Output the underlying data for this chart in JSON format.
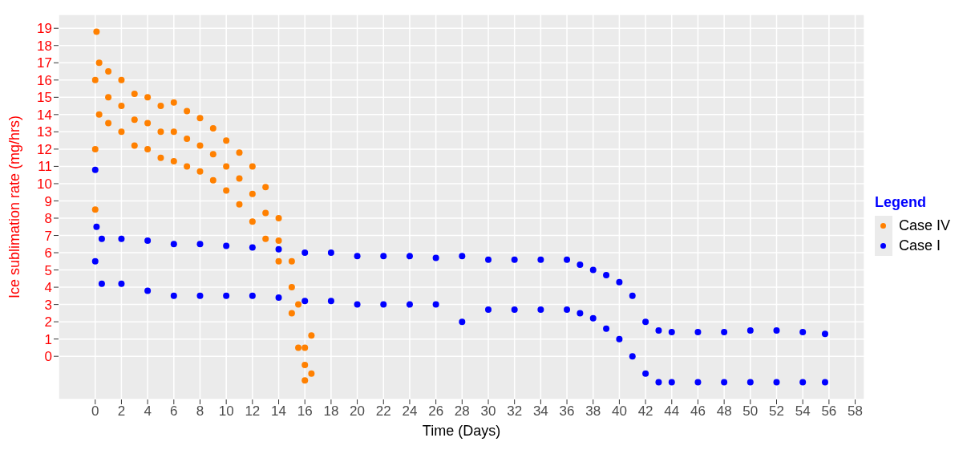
{
  "chart_data": {
    "type": "scatter",
    "xlabel": "Time (Days)",
    "ylabel": "Ice sublimation rate (mg/hrs)",
    "legend_title": "Legend",
    "legend": "right",
    "grid": true,
    "marker": "circle",
    "xlim": [
      -2.8,
      58.7
    ],
    "ylim": [
      -2.5,
      19.8
    ],
    "xticks": [
      0,
      2,
      4,
      6,
      8,
      10,
      12,
      14,
      16,
      18,
      20,
      22,
      24,
      26,
      28,
      30,
      32,
      34,
      36,
      38,
      40,
      42,
      44,
      46,
      48,
      50,
      52,
      54,
      56,
      58
    ],
    "yticks": [
      0,
      1,
      2,
      3,
      4,
      5,
      6,
      7,
      8,
      9,
      10,
      11,
      12,
      13,
      14,
      15,
      16,
      17,
      18,
      19
    ],
    "series": [
      {
        "name": "Case IV",
        "color": "#ff8000",
        "x": [
          0,
          0,
          0,
          0.1,
          0.3,
          0.3,
          1,
          1,
          1,
          2,
          2,
          2,
          3,
          3,
          3,
          4,
          4,
          4,
          5,
          5,
          5,
          6,
          6,
          6,
          7,
          7,
          7,
          8,
          8,
          8,
          9,
          9,
          9,
          10,
          10,
          10,
          11,
          11,
          11,
          12,
          12,
          12,
          13,
          13,
          13,
          14,
          14,
          14,
          15,
          15,
          15,
          15.5,
          15.5,
          16,
          16,
          16,
          16.5,
          16.5
        ],
        "values": [
          8.5,
          12,
          16,
          18.8,
          17,
          14,
          16.5,
          15,
          13.5,
          16,
          14.5,
          13,
          15.2,
          13.7,
          12.2,
          15,
          13.5,
          12,
          14.5,
          13,
          11.5,
          14.7,
          13,
          11.3,
          14.2,
          12.6,
          11,
          13.8,
          12.2,
          10.7,
          13.2,
          11.7,
          10.2,
          12.5,
          11,
          9.6,
          11.8,
          10.3,
          8.8,
          11,
          9.4,
          7.8,
          9.8,
          8.3,
          6.8,
          8,
          6.7,
          5.5,
          5.5,
          4,
          2.5,
          3,
          0.5,
          0.5,
          -0.5,
          -1.4,
          1.2,
          -1
        ]
      },
      {
        "name": "Case I",
        "color": "#0000ff",
        "x": [
          0,
          0,
          0.1,
          0.5,
          0.5,
          2,
          2,
          4,
          4,
          6,
          6,
          8,
          8,
          10,
          10,
          12,
          12,
          14,
          14,
          16,
          16,
          18,
          18,
          20,
          20,
          22,
          22,
          24,
          24,
          26,
          26,
          28,
          28,
          30,
          30,
          32,
          32,
          34,
          34,
          36,
          36,
          37,
          37,
          38,
          38,
          39,
          39,
          40,
          40,
          41,
          41,
          42,
          42,
          43,
          43,
          44,
          44,
          46,
          46,
          48,
          48,
          50,
          50,
          52,
          52,
          54,
          54,
          55.7,
          55.7
        ],
        "values": [
          5.5,
          10.8,
          7.5,
          6.8,
          4.2,
          6.8,
          4.2,
          6.7,
          3.8,
          6.5,
          3.5,
          6.5,
          3.5,
          6.4,
          3.5,
          6.3,
          3.5,
          6.2,
          3.4,
          6.0,
          3.2,
          6.0,
          3.2,
          5.8,
          3.0,
          5.8,
          3.0,
          5.8,
          3.0,
          5.7,
          3.0,
          5.8,
          2.0,
          5.6,
          2.7,
          5.6,
          2.7,
          5.6,
          2.7,
          5.6,
          2.7,
          5.3,
          2.5,
          5.0,
          2.2,
          4.7,
          1.6,
          4.3,
          1.0,
          3.5,
          0.0,
          2.0,
          -1.0,
          1.5,
          -1.5,
          1.4,
          -1.5,
          1.4,
          -1.5,
          1.4,
          -1.5,
          1.5,
          -1.5,
          1.5,
          -1.5,
          1.4,
          -1.5,
          1.3,
          -1.5
        ]
      }
    ]
  }
}
